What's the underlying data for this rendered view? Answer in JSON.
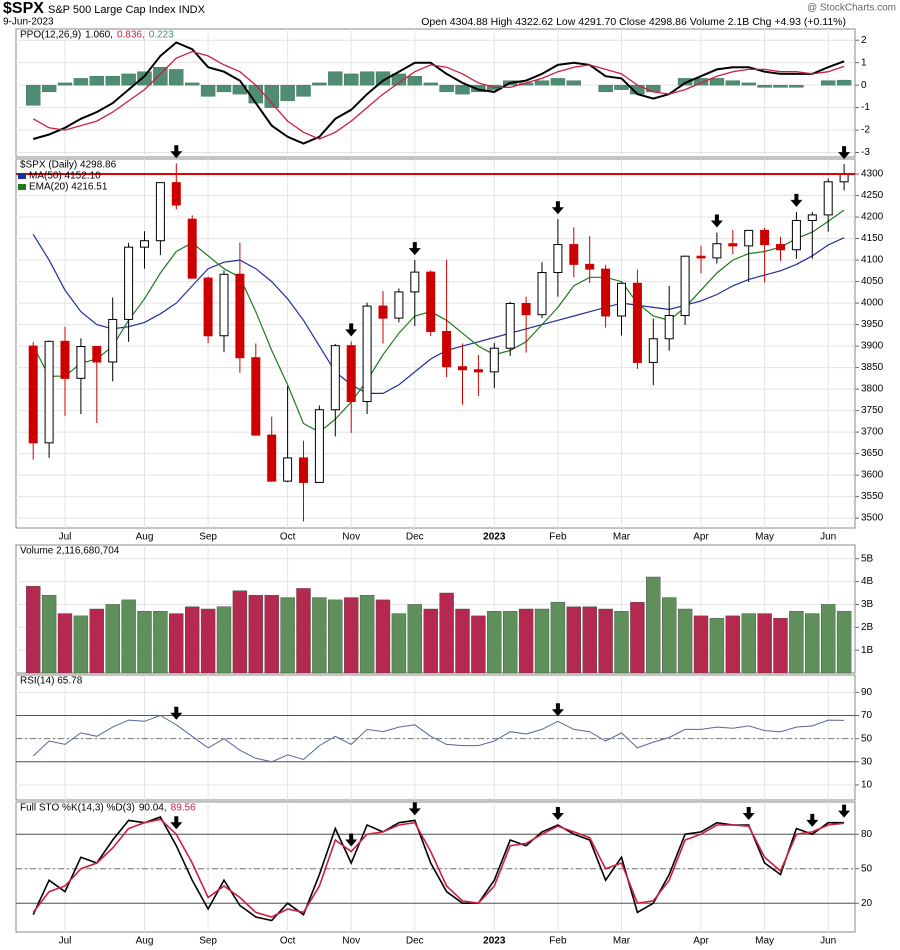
{
  "header": {
    "symbol": "$SPX",
    "name": "S&P 500 Large Cap Index INDX",
    "date": "9-Jun-2023",
    "quote": "Open 4304.88 High 4322.62 Low 4291.70 Close 4298.86 Volume 2.1B Chg +4.93 (+0.11%)",
    "source": "@ StockCharts.com"
  },
  "chart_data": [
    {
      "type": "ppo",
      "title": "PPO(12,26,9)",
      "readout": [
        "1.060,",
        "0.836,",
        "0.223"
      ],
      "lines": [
        {
          "color": "#000000",
          "values": [
            -2.4,
            -2.2,
            -1.9,
            -1.5,
            -1.2,
            -0.8,
            -0.2,
            0.4,
            1.3,
            1.9,
            1.6,
            0.8,
            0.6,
            0.2,
            -0.8,
            -1.8,
            -2.3,
            -2.6,
            -2.3,
            -1.5,
            -1.1,
            -0.4,
            0.2,
            0.6,
            1.0,
            1.0,
            0.5,
            0.1,
            -0.2,
            -0.3,
            0.1,
            0.2,
            0.5,
            0.9,
            1.0,
            0.9,
            0.4,
            0.3,
            -0.4,
            -0.6,
            -0.4,
            0.1,
            0.4,
            0.7,
            0.8,
            0.8,
            0.6,
            0.5,
            0.5,
            0.5,
            0.8,
            1.06
          ]
        },
        {
          "color": "#cc1f3f",
          "values": [
            -1.5,
            -1.9,
            -2.0,
            -1.8,
            -1.6,
            -1.2,
            -0.7,
            -0.2,
            0.5,
            1.2,
            1.5,
            1.3,
            0.9,
            0.6,
            0.0,
            -0.8,
            -1.6,
            -2.1,
            -2.4,
            -2.1,
            -1.6,
            -1.0,
            -0.4,
            0.1,
            0.6,
            0.9,
            0.8,
            0.5,
            0.1,
            -0.1,
            -0.1,
            0.1,
            0.3,
            0.6,
            0.8,
            0.9,
            0.7,
            0.5,
            0.0,
            -0.3,
            -0.4,
            -0.2,
            0.1,
            0.4,
            0.6,
            0.7,
            0.7,
            0.6,
            0.6,
            0.5,
            0.6,
            0.836
          ]
        }
      ],
      "histogram": {
        "color": "#4e8c74",
        "values": [
          -0.9,
          -0.3,
          0.1,
          0.3,
          0.4,
          0.4,
          0.5,
          0.6,
          0.8,
          0.7,
          0.1,
          -0.5,
          -0.3,
          -0.4,
          -0.8,
          -1.0,
          -0.7,
          -0.5,
          0.1,
          0.6,
          0.5,
          0.6,
          0.6,
          0.5,
          0.4,
          0.1,
          -0.3,
          -0.4,
          -0.3,
          -0.2,
          0.2,
          0.1,
          0.2,
          0.3,
          0.2,
          0.0,
          -0.3,
          -0.2,
          -0.4,
          -0.3,
          0.0,
          0.3,
          0.3,
          0.3,
          0.2,
          0.1,
          -0.1,
          -0.1,
          -0.1,
          0.0,
          0.2,
          0.223
        ]
      },
      "ylim": [
        -3.2,
        2.5
      ],
      "yticks": [
        -3,
        -2,
        -1,
        0,
        1,
        2
      ]
    },
    {
      "type": "candlestick",
      "title": "$SPX (Daily) 4298.86",
      "categories": [
        null,
        null,
        "Jul",
        null,
        null,
        null,
        null,
        "Aug",
        null,
        null,
        null,
        "Sep",
        null,
        null,
        null,
        null,
        "Oct",
        null,
        null,
        null,
        "Nov",
        null,
        null,
        null,
        "Dec",
        null,
        null,
        null,
        null,
        "2023",
        null,
        null,
        null,
        "Feb",
        null,
        null,
        null,
        "Mar",
        null,
        null,
        null,
        null,
        "Apr",
        null,
        null,
        null,
        "May",
        null,
        null,
        null,
        "Jun",
        null
      ],
      "open": [
        3900,
        3675,
        3911,
        3825,
        3899,
        3863,
        3962,
        4130,
        4145,
        4280,
        4195,
        4058,
        3924,
        4067,
        3873,
        3693,
        3586,
        3640,
        3583,
        3752,
        3901,
        3771,
        3993,
        3965,
        4026,
        4072,
        3934,
        3852,
        3845,
        3840,
        3895,
        3999,
        3973,
        4071,
        4136,
        4090,
        4079,
        3970,
        4046,
        3862,
        3917,
        3971,
        4109,
        4105,
        4138,
        4133,
        4169,
        4136,
        4124,
        4192,
        4205,
        4282
      ],
      "high": [
        3910,
        3913,
        3945,
        3918,
        3900,
        4013,
        4140,
        4167,
        4280,
        4325,
        4204,
        4062,
        4076,
        4140,
        3906,
        3736,
        3807,
        3680,
        3762,
        3905,
        3911,
        4001,
        4028,
        4034,
        4100,
        4076,
        4101,
        3906,
        3879,
        3907,
        4003,
        4015,
        4095,
        4195,
        4176,
        4156,
        4089,
        4048,
        4078,
        3964,
        4040,
        4110,
        4133,
        4164,
        4170,
        4170,
        4175,
        4154,
        4212,
        4212,
        4290,
        4323
      ],
      "low": [
        3636,
        3640,
        3738,
        3742,
        3721,
        3818,
        3910,
        4080,
        4112,
        4218,
        4057,
        3907,
        3886,
        3838,
        3693,
        3584,
        3584,
        3492,
        3590,
        3690,
        3698,
        3742,
        3906,
        3955,
        3947,
        3923,
        3828,
        3764,
        3784,
        3802,
        3877,
        3885,
        3965,
        4015,
        4060,
        4047,
        3943,
        3925,
        3847,
        3809,
        3889,
        3949,
        4069,
        4092,
        4114,
        4049,
        4048,
        4098,
        4103,
        4103,
        4166,
        4262
      ],
      "close": [
        3675,
        3911,
        3825,
        3899,
        3863,
        3962,
        4130,
        4145,
        4280,
        4228,
        4058,
        3924,
        4067,
        3873,
        3693,
        3586,
        3640,
        3583,
        3752,
        3901,
        3771,
        3993,
        3965,
        4026,
        4072,
        3934,
        3852,
        3845,
        3840,
        3895,
        3999,
        3973,
        4071,
        4136,
        4090,
        4079,
        3970,
        4046,
        3862,
        3917,
        3971,
        4109,
        4105,
        4138,
        4133,
        4169,
        4136,
        4124,
        4192,
        4205,
        4282,
        4299
      ],
      "up_color": "#000000",
      "down_color": "#cc0000",
      "series": [
        {
          "name": "MA(50) 4152.10",
          "color": "#1f2f9a",
          "values": [
            4160,
            4100,
            4030,
            3980,
            3950,
            3940,
            3945,
            3955,
            3975,
            4000,
            4040,
            4080,
            4095,
            4100,
            4080,
            4050,
            4010,
            3960,
            3900,
            3840,
            3810,
            3790,
            3790,
            3810,
            3840,
            3870,
            3890,
            3900,
            3910,
            3920,
            3930,
            3940,
            3950,
            3960,
            3970,
            3980,
            3990,
            4000,
            3995,
            3990,
            3985,
            3995,
            4005,
            4020,
            4040,
            4055,
            4065,
            4075,
            4090,
            4110,
            4135,
            4152.1
          ]
        },
        {
          "name": "EMA(20) 4216.51",
          "color": "#1e7a1e",
          "values": [
            3900,
            3830,
            3830,
            3860,
            3870,
            3900,
            3960,
            4010,
            4070,
            4120,
            4140,
            4110,
            4080,
            4060,
            3980,
            3890,
            3810,
            3720,
            3700,
            3730,
            3770,
            3820,
            3880,
            3930,
            3970,
            3980,
            3960,
            3930,
            3900,
            3880,
            3890,
            3910,
            3950,
            3990,
            4040,
            4060,
            4060,
            4050,
            4000,
            3970,
            3960,
            3990,
            4030,
            4070,
            4100,
            4115,
            4120,
            4130,
            4150,
            4165,
            4190,
            4216.51
          ]
        }
      ],
      "hline": 4300,
      "hline_color": "#e00000",
      "arrows": [
        9,
        20,
        24,
        33,
        43,
        48,
        51
      ],
      "ylim": [
        3477,
        4335
      ],
      "yticks": [
        3500,
        3550,
        3600,
        3650,
        3700,
        3750,
        3800,
        3850,
        3900,
        3950,
        4000,
        4050,
        4100,
        4150,
        4200,
        4250,
        4300
      ]
    },
    {
      "type": "volume",
      "title": "Volume 2,116,680,704",
      "up_color": "#5f8f5a",
      "down_color": "#b5284f",
      "values": [
        3.8,
        3.4,
        2.6,
        2.5,
        2.8,
        3.0,
        3.2,
        2.7,
        2.7,
        2.6,
        2.9,
        2.8,
        2.9,
        3.6,
        3.4,
        3.4,
        3.3,
        3.7,
        3.3,
        3.2,
        3.3,
        3.4,
        3.2,
        2.6,
        3.0,
        2.8,
        3.5,
        2.8,
        2.5,
        2.7,
        2.7,
        2.8,
        2.8,
        3.1,
        2.9,
        2.9,
        2.8,
        2.7,
        3.1,
        4.2,
        3.3,
        2.8,
        2.5,
        2.4,
        2.5,
        2.6,
        2.6,
        2.4,
        2.7,
        2.6,
        3.0,
        2.7
      ],
      "ylim": [
        0,
        5.6
      ],
      "yticks": [
        {
          "value": 1,
          "label": "1B"
        },
        {
          "value": 2,
          "label": "2B"
        },
        {
          "value": 3,
          "label": "3B"
        },
        {
          "value": 4,
          "label": "4B"
        },
        {
          "value": 5,
          "label": "5B"
        }
      ]
    },
    {
      "type": "oscillator",
      "title": "RSI(14) 65.78",
      "series": [
        {
          "color": "#5566a0",
          "values": [
            35,
            48,
            45,
            55,
            52,
            60,
            66,
            65,
            70,
            62,
            52,
            42,
            50,
            40,
            33,
            30,
            36,
            32,
            44,
            52,
            45,
            58,
            56,
            60,
            62,
            52,
            45,
            44,
            44,
            48,
            56,
            54,
            58,
            65,
            58,
            56,
            48,
            55,
            42,
            47,
            51,
            58,
            58,
            60,
            59,
            61,
            57,
            56,
            60,
            61,
            66,
            65.78
          ]
        }
      ],
      "levels": [
        30,
        70
      ],
      "midline": 50,
      "arrows": [
        9,
        33
      ],
      "ylim": [
        -3,
        105
      ],
      "yticks": [
        10,
        30,
        50,
        70,
        90
      ]
    },
    {
      "type": "oscillator",
      "title": "Full STO %K(14,3) %D(3)",
      "readout": [
        "90.04,",
        "89.56"
      ],
      "categories": [
        null,
        null,
        "Jul",
        null,
        null,
        null,
        null,
        "Aug",
        null,
        null,
        null,
        "Sep",
        null,
        null,
        null,
        null,
        "Oct",
        null,
        null,
        null,
        "Nov",
        null,
        null,
        null,
        "Dec",
        null,
        null,
        null,
        null,
        "2023",
        null,
        null,
        null,
        "Feb",
        null,
        null,
        null,
        "Mar",
        null,
        null,
        null,
        null,
        "Apr",
        null,
        null,
        null,
        "May",
        null,
        null,
        null,
        "Jun",
        null
      ],
      "series": [
        {
          "color": "#000000",
          "values": [
            10,
            40,
            30,
            60,
            55,
            75,
            92,
            90,
            95,
            70,
            40,
            15,
            40,
            18,
            8,
            5,
            20,
            10,
            45,
            85,
            55,
            88,
            82,
            90,
            92,
            55,
            30,
            20,
            20,
            40,
            75,
            70,
            82,
            88,
            80,
            75,
            40,
            60,
            12,
            20,
            45,
            80,
            82,
            90,
            88,
            88,
            55,
            45,
            85,
            80,
            90,
            90.04
          ]
        },
        {
          "color": "#cc1f3f",
          "values": [
            12,
            30,
            35,
            50,
            55,
            68,
            85,
            90,
            93,
            80,
            55,
            25,
            35,
            25,
            12,
            8,
            15,
            12,
            35,
            75,
            65,
            80,
            82,
            88,
            90,
            65,
            35,
            22,
            20,
            35,
            70,
            72,
            80,
            87,
            82,
            77,
            50,
            55,
            20,
            22,
            40,
            75,
            80,
            88,
            88,
            87,
            60,
            48,
            80,
            82,
            88,
            89.56
          ]
        }
      ],
      "levels": [
        20,
        80
      ],
      "midline": 50,
      "arrows": [
        9,
        20,
        24,
        33,
        45,
        49,
        51
      ],
      "ylim": [
        -5,
        108
      ],
      "yticks": [
        20,
        50,
        80
      ]
    }
  ]
}
